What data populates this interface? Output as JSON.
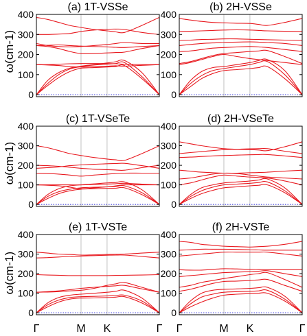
{
  "figure": {
    "row_ylabels": [
      "ω(cm-1)",
      "ω(cm-1)",
      "ω(cm-1)"
    ],
    "x_tick_labels": [
      "Γ",
      "M",
      "K",
      "Γ"
    ]
  },
  "chart_data": [
    {
      "type": "line",
      "title": "(a) 1T-VSSe",
      "ylabel": "ω(cm-1)",
      "ylim": [
        -10,
        400
      ],
      "yticks": [
        0,
        100,
        200,
        300,
        400
      ],
      "x_high_symmetry": [
        "Γ",
        "M",
        "K",
        "Γ"
      ],
      "x": [
        0,
        0.25,
        0.5,
        0.75,
        1.0,
        1.25,
        1.5,
        1.75,
        2.0,
        2.5,
        3.0
      ],
      "series": [
        {
          "values": [
            0,
            45,
            85,
            115,
            132,
            135,
            138,
            140,
            145,
            80,
            0
          ]
        },
        {
          "values": [
            0,
            55,
            100,
            128,
            140,
            148,
            152,
            155,
            160,
            90,
            0
          ]
        },
        {
          "values": [
            0,
            70,
            110,
            132,
            142,
            150,
            158,
            164,
            170,
            110,
            0
          ]
        },
        {
          "values": [
            150,
            150,
            152,
            154,
            155,
            155,
            155,
            154,
            152,
            150,
            150
          ]
        },
        {
          "values": [
            150,
            148,
            145,
            140,
            138,
            140,
            142,
            144,
            142,
            146,
            150
          ]
        },
        {
          "values": [
            245,
            240,
            230,
            215,
            205,
            205,
            208,
            210,
            212,
            230,
            245
          ]
        },
        {
          "values": [
            245,
            246,
            248,
            245,
            242,
            240,
            238,
            236,
            235,
            240,
            245
          ]
        },
        {
          "values": [
            255,
            245,
            240,
            238,
            240,
            245,
            250,
            255,
            260,
            255,
            255
          ]
        },
        {
          "values": [
            385,
            375,
            360,
            345,
            335,
            325,
            318,
            313,
            310,
            345,
            385
          ]
        },
        {
          "values": [
            300,
            300,
            302,
            305,
            315,
            322,
            326,
            327,
            325,
            310,
            300
          ]
        }
      ],
      "zero_line": true
    },
    {
      "type": "line",
      "title": "(b) 2H-VSSe",
      "ylabel": "",
      "ylim": [
        -10,
        400
      ],
      "yticks": [
        0,
        100,
        200,
        300,
        400
      ],
      "x_high_symmetry": [
        "Γ",
        "M",
        "K",
        "Γ"
      ],
      "x": [
        0,
        0.25,
        0.5,
        0.75,
        1.0,
        1.25,
        1.5,
        1.75,
        2.0,
        2.5,
        3.0
      ],
      "series": [
        {
          "values": [
            0,
            40,
            80,
            105,
            120,
            125,
            130,
            135,
            140,
            80,
            0
          ]
        },
        {
          "values": [
            0,
            55,
            95,
            120,
            130,
            140,
            150,
            160,
            165,
            100,
            0
          ]
        },
        {
          "values": [
            0,
            70,
            115,
            135,
            140,
            150,
            160,
            170,
            175,
            120,
            0
          ]
        },
        {
          "values": [
            150,
            160,
            175,
            190,
            200,
            190,
            180,
            175,
            170,
            160,
            150
          ]
        },
        {
          "values": [
            155,
            165,
            180,
            195,
            205,
            210,
            215,
            218,
            220,
            190,
            155
          ]
        },
        {
          "values": [
            215,
            218,
            225,
            232,
            235,
            238,
            240,
            238,
            235,
            225,
            215
          ]
        },
        {
          "values": [
            245,
            250,
            255,
            258,
            260,
            262,
            263,
            262,
            260,
            255,
            245
          ]
        },
        {
          "values": [
            270,
            272,
            275,
            276,
            278,
            278,
            276,
            275,
            274,
            272,
            270
          ]
        },
        {
          "values": [
            315,
            316,
            318,
            320,
            322,
            323,
            322,
            320,
            318,
            316,
            315
          ]
        },
        {
          "values": [
            380,
            372,
            365,
            360,
            358,
            356,
            355,
            350,
            345,
            360,
            380
          ]
        }
      ],
      "zero_line": true
    },
    {
      "type": "line",
      "title": "(c) 1T-VSeTe",
      "ylabel": "ω(cm-1)",
      "ylim": [
        -10,
        400
      ],
      "yticks": [
        0,
        100,
        200,
        300,
        400
      ],
      "x_high_symmetry": [
        "Γ",
        "M",
        "K",
        "Γ"
      ],
      "x": [
        0,
        0.25,
        0.5,
        0.75,
        1.0,
        1.25,
        1.5,
        1.75,
        2.0,
        2.5,
        3.0
      ],
      "series": [
        {
          "values": [
            0,
            30,
            55,
            70,
            78,
            80,
            82,
            83,
            85,
            50,
            0
          ]
        },
        {
          "values": [
            0,
            40,
            65,
            78,
            85,
            88,
            90,
            92,
            95,
            60,
            0
          ]
        },
        {
          "values": [
            0,
            50,
            80,
            95,
            100,
            105,
            110,
            112,
            115,
            75,
            0
          ]
        },
        {
          "values": [
            100,
            100,
            100,
            100,
            100,
            102,
            104,
            106,
            108,
            104,
            100
          ]
        },
        {
          "values": [
            100,
            98,
            95,
            88,
            80,
            85,
            90,
            95,
            100,
            100,
            100
          ]
        },
        {
          "values": [
            160,
            158,
            155,
            150,
            145,
            150,
            155,
            158,
            160,
            160,
            160
          ]
        },
        {
          "values": [
            200,
            198,
            195,
            190,
            185,
            180,
            178,
            176,
            175,
            188,
            200
          ]
        },
        {
          "values": [
            185,
            188,
            192,
            198,
            202,
            205,
            208,
            209,
            210,
            198,
            185
          ]
        },
        {
          "values": [
            300,
            290,
            275,
            260,
            250,
            240,
            232,
            228,
            225,
            260,
            300
          ]
        }
      ],
      "zero_line": true
    },
    {
      "type": "line",
      "title": "(d) 2H-VSeTe",
      "ylabel": "",
      "ylim": [
        -10,
        400
      ],
      "yticks": [
        0,
        100,
        200,
        300,
        400
      ],
      "x_high_symmetry": [
        "Γ",
        "M",
        "K",
        "Γ"
      ],
      "x": [
        0,
        0.25,
        0.5,
        0.75,
        1.0,
        1.25,
        1.5,
        1.75,
        2.0,
        2.5,
        3.0
      ],
      "series": [
        {
          "values": [
            0,
            30,
            55,
            72,
            85,
            90,
            95,
            98,
            100,
            60,
            0
          ]
        },
        {
          "values": [
            0,
            40,
            70,
            88,
            100,
            104,
            108,
            112,
            115,
            70,
            0
          ]
        },
        {
          "values": [
            0,
            50,
            85,
            100,
            110,
            115,
            120,
            125,
            130,
            85,
            0
          ]
        },
        {
          "values": [
            100,
            110,
            125,
            140,
            150,
            145,
            140,
            138,
            135,
            120,
            100
          ]
        },
        {
          "values": [
            130,
            135,
            145,
            155,
            160,
            158,
            150,
            145,
            140,
            135,
            130
          ]
        },
        {
          "values": [
            175,
            170,
            165,
            162,
            160,
            160,
            162,
            163,
            165,
            170,
            175
          ]
        },
        {
          "values": [
            240,
            242,
            245,
            248,
            250,
            252,
            254,
            255,
            255,
            248,
            240
          ]
        },
        {
          "values": [
            260,
            265,
            270,
            275,
            280,
            282,
            284,
            285,
            285,
            272,
            260
          ]
        },
        {
          "values": [
            320,
            310,
            300,
            292,
            285,
            282,
            280,
            278,
            275,
            295,
            320
          ]
        }
      ],
      "zero_line": true
    },
    {
      "type": "line",
      "title": "(e) 1T-VSTe",
      "ylabel": "ω(cm-1)",
      "ylim": [
        -10,
        400
      ],
      "yticks": [
        0,
        100,
        200,
        300,
        400
      ],
      "x_high_symmetry": [
        "Γ",
        "M",
        "K",
        "Γ"
      ],
      "x": [
        0,
        0.25,
        0.5,
        0.75,
        1.0,
        1.25,
        1.5,
        1.75,
        2.0,
        2.5,
        3.0
      ],
      "series": [
        {
          "values": [
            0,
            30,
            55,
            70,
            75,
            76,
            78,
            80,
            82,
            50,
            0
          ]
        },
        {
          "values": [
            0,
            40,
            65,
            78,
            82,
            84,
            86,
            88,
            90,
            60,
            0
          ]
        },
        {
          "values": [
            0,
            50,
            78,
            90,
            95,
            100,
            105,
            110,
            115,
            75,
            0
          ]
        },
        {
          "values": [
            105,
            108,
            112,
            118,
            125,
            130,
            135,
            138,
            140,
            122,
            105
          ]
        },
        {
          "values": [
            105,
            106,
            108,
            112,
            115,
            125,
            140,
            148,
            155,
            130,
            105
          ]
        },
        {
          "values": [
            195,
            193,
            192,
            190,
            190,
            190,
            190,
            191,
            192,
            193,
            195
          ]
        },
        {
          "values": [
            280,
            282,
            285,
            288,
            290,
            292,
            294,
            295,
            295,
            288,
            280
          ]
        },
        {
          "values": [
            310,
            305,
            300,
            298,
            295,
            296,
            298,
            299,
            300,
            305,
            310
          ]
        }
      ],
      "zero_line": true
    },
    {
      "type": "line",
      "title": "(f) 2H-VSTe",
      "ylabel": "",
      "ylim": [
        -10,
        400
      ],
      "yticks": [
        0,
        100,
        200,
        300,
        400
      ],
      "x_high_symmetry": [
        "Γ",
        "M",
        "K",
        "Γ"
      ],
      "x": [
        0,
        0.25,
        0.5,
        0.75,
        1.0,
        1.25,
        1.5,
        1.75,
        2.0,
        2.5,
        3.0
      ],
      "series": [
        {
          "values": [
            0,
            30,
            55,
            75,
            90,
            95,
            98,
            100,
            100,
            60,
            0
          ]
        },
        {
          "values": [
            0,
            45,
            80,
            95,
            105,
            108,
            110,
            112,
            115,
            70,
            0
          ]
        },
        {
          "values": [
            0,
            60,
            100,
            115,
            120,
            122,
            125,
            128,
            130,
            85,
            0
          ]
        },
        {
          "values": [
            110,
            120,
            135,
            150,
            160,
            162,
            165,
            168,
            170,
            140,
            110
          ]
        },
        {
          "values": [
            130,
            140,
            155,
            165,
            175,
            185,
            195,
            200,
            205,
            170,
            130
          ]
        },
        {
          "values": [
            185,
            190,
            195,
            200,
            205,
            208,
            210,
            212,
            215,
            200,
            185
          ]
        },
        {
          "values": [
            220,
            218,
            218,
            222,
            225,
            224,
            222,
            221,
            220,
            220,
            220
          ]
        },
        {
          "values": [
            290,
            295,
            300,
            305,
            310,
            310,
            310,
            310,
            310,
            300,
            290
          ]
        },
        {
          "values": [
            320,
            322,
            325,
            325,
            325,
            324,
            322,
            321,
            320,
            320,
            320
          ]
        },
        {
          "values": [
            365,
            360,
            350,
            345,
            340,
            338,
            336,
            338,
            340,
            350,
            365
          ]
        }
      ],
      "zero_line": true
    }
  ],
  "colors": {
    "bands": "#e8191f",
    "zero_line": "#2b2bd8",
    "vertical_lines": "#b0b0b0",
    "axes": "#000000"
  }
}
